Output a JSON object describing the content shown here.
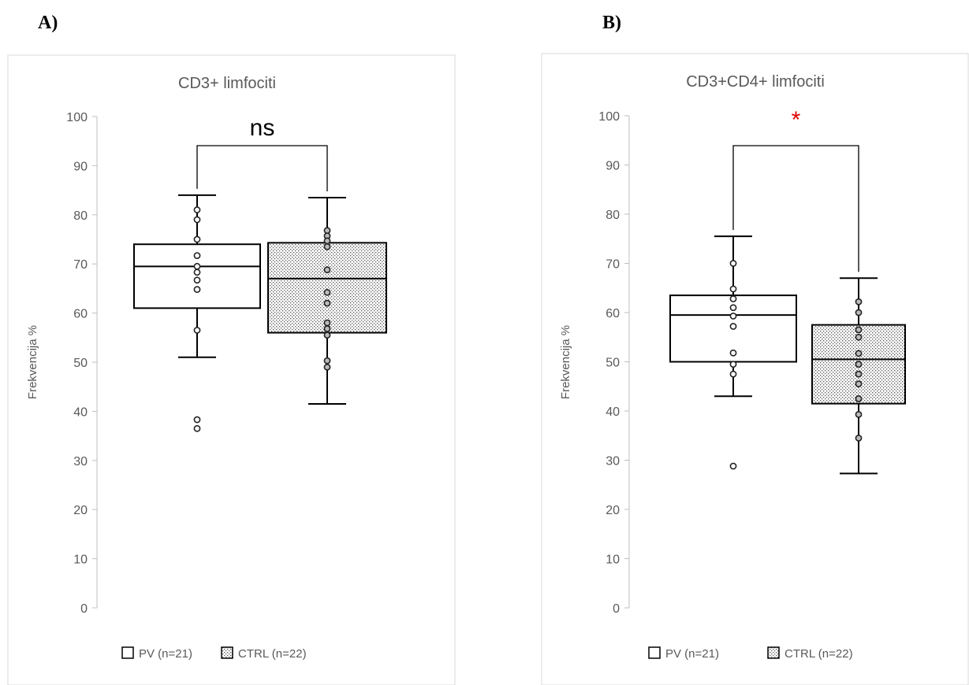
{
  "chart_data": [
    {
      "type": "box",
      "panel_label": "A)",
      "title": "CD3+ limfociti",
      "ylabel": "Frekvencija %",
      "ylim": [
        0,
        100
      ],
      "yticks": [
        0,
        10,
        20,
        30,
        40,
        50,
        60,
        70,
        80,
        90,
        100
      ],
      "legend_position": "bottom",
      "significance": {
        "label": "ns",
        "color": "#000000"
      },
      "series": [
        {
          "name": "PV (n=21)",
          "fill": "plain",
          "whisker_low": 51,
          "q1": 61,
          "median": 69.5,
          "q3": 74,
          "whisker_high": 84,
          "points": [
            81,
            79,
            75,
            71.7,
            69.5,
            68.3,
            66.7,
            64.8,
            56.5,
            38.3,
            36.5
          ]
        },
        {
          "name": "CTRL (n=22)",
          "fill": "dotted",
          "whisker_low": 41.5,
          "q1": 56,
          "median": 67,
          "q3": 74.3,
          "whisker_high": 83.5,
          "points": [
            76.8,
            75.7,
            74.7,
            73.5,
            68.8,
            64.2,
            62,
            58,
            56.8,
            55.5,
            50.3,
            49
          ]
        }
      ]
    },
    {
      "type": "box",
      "panel_label": "B)",
      "title": "CD3+CD4+ limfociti",
      "ylabel": "Frekvencija %",
      "ylim": [
        0,
        100
      ],
      "yticks": [
        0,
        10,
        20,
        30,
        40,
        50,
        60,
        70,
        80,
        90,
        100
      ],
      "legend_position": "bottom",
      "significance": {
        "label": "*",
        "color": "#e00000"
      },
      "series": [
        {
          "name": "PV (n=21)",
          "fill": "plain",
          "whisker_low": 43,
          "q1": 50,
          "median": 59.5,
          "q3": 63.5,
          "whisker_high": 75.5,
          "points": [
            70,
            64.8,
            62.8,
            61,
            59.3,
            57.2,
            51.8,
            49.5,
            47.5,
            28.8
          ]
        },
        {
          "name": "CTRL (n=22)",
          "fill": "dotted",
          "whisker_low": 27.3,
          "q1": 41.5,
          "median": 50.5,
          "q3": 57.5,
          "whisker_high": 67,
          "points": [
            62.2,
            60,
            56.5,
            55,
            51.7,
            49.5,
            47.5,
            45.5,
            42.5,
            39.3,
            34.5
          ]
        }
      ]
    }
  ]
}
